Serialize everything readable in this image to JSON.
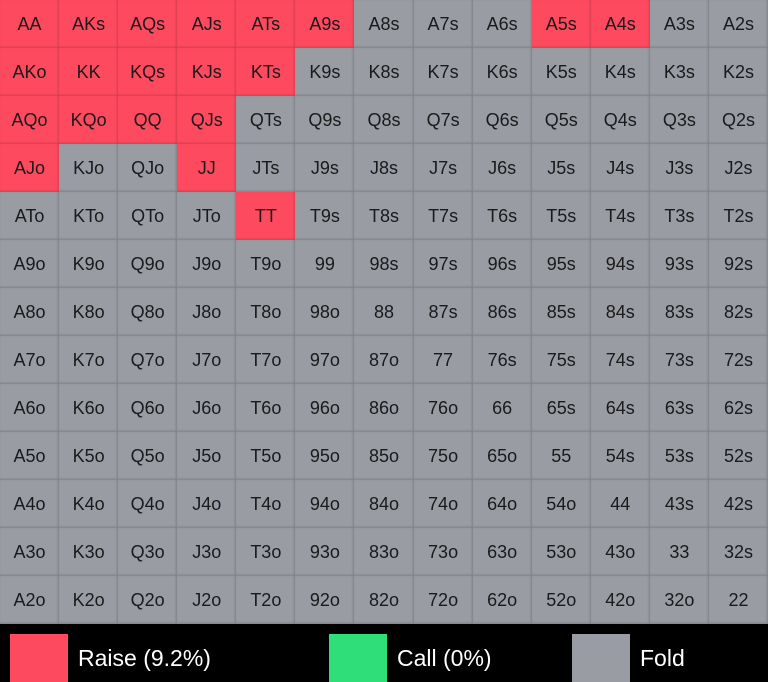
{
  "grid": {
    "rows": [
      [
        "AA",
        "AKs",
        "AQs",
        "AJs",
        "ATs",
        "A9s",
        "A8s",
        "A7s",
        "A6s",
        "A5s",
        "A4s",
        "A3s",
        "A2s"
      ],
      [
        "AKo",
        "KK",
        "KQs",
        "KJs",
        "KTs",
        "K9s",
        "K8s",
        "K7s",
        "K6s",
        "K5s",
        "K4s",
        "K3s",
        "K2s"
      ],
      [
        "AQo",
        "KQo",
        "QQ",
        "QJs",
        "QTs",
        "Q9s",
        "Q8s",
        "Q7s",
        "Q6s",
        "Q5s",
        "Q4s",
        "Q3s",
        "Q2s"
      ],
      [
        "AJo",
        "KJo",
        "QJo",
        "JJ",
        "JTs",
        "J9s",
        "J8s",
        "J7s",
        "J6s",
        "J5s",
        "J4s",
        "J3s",
        "J2s"
      ],
      [
        "ATo",
        "KTo",
        "QTo",
        "JTo",
        "TT",
        "T9s",
        "T8s",
        "T7s",
        "T6s",
        "T5s",
        "T4s",
        "T3s",
        "T2s"
      ],
      [
        "A9o",
        "K9o",
        "Q9o",
        "J9o",
        "T9o",
        "99",
        "98s",
        "97s",
        "96s",
        "95s",
        "94s",
        "93s",
        "92s"
      ],
      [
        "A8o",
        "K8o",
        "Q8o",
        "J8o",
        "T8o",
        "98o",
        "88",
        "87s",
        "86s",
        "85s",
        "84s",
        "83s",
        "82s"
      ],
      [
        "A7o",
        "K7o",
        "Q7o",
        "J7o",
        "T7o",
        "97o",
        "87o",
        "77",
        "76s",
        "75s",
        "74s",
        "73s",
        "72s"
      ],
      [
        "A6o",
        "K6o",
        "Q6o",
        "J6o",
        "T6o",
        "96o",
        "86o",
        "76o",
        "66",
        "65s",
        "64s",
        "63s",
        "62s"
      ],
      [
        "A5o",
        "K5o",
        "Q5o",
        "J5o",
        "T5o",
        "95o",
        "85o",
        "75o",
        "65o",
        "55",
        "54s",
        "53s",
        "52s"
      ],
      [
        "A4o",
        "K4o",
        "Q4o",
        "J4o",
        "T4o",
        "94o",
        "84o",
        "74o",
        "64o",
        "54o",
        "44",
        "43s",
        "42s"
      ],
      [
        "A3o",
        "K3o",
        "Q3o",
        "J3o",
        "T3o",
        "93o",
        "83o",
        "73o",
        "63o",
        "53o",
        "43o",
        "33",
        "32s"
      ],
      [
        "A2o",
        "K2o",
        "Q2o",
        "J2o",
        "T2o",
        "92o",
        "82o",
        "72o",
        "62o",
        "52o",
        "42o",
        "32o",
        "22"
      ]
    ],
    "raise": [
      "AA",
      "AKs",
      "AQs",
      "AJs",
      "ATs",
      "A9s",
      "A5s",
      "A4s",
      "AKo",
      "KK",
      "KQs",
      "KJs",
      "KTs",
      "AQo",
      "KQo",
      "QQ",
      "QJs",
      "AJo",
      "JJ",
      "TT"
    ],
    "call": []
  },
  "legend": {
    "raise": {
      "label": "Raise (9.2%)",
      "color": "#fe4a5f"
    },
    "call": {
      "label": "Call (0%)",
      "color": "#2fdd79"
    },
    "fold": {
      "label": "Fold",
      "color": "#9a9ca4"
    }
  }
}
